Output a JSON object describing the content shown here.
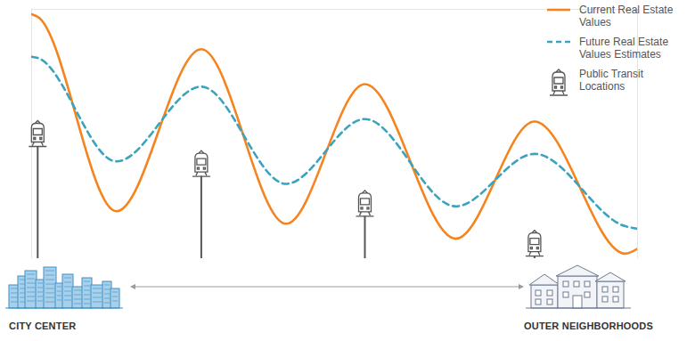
{
  "chart_data": {
    "type": "line",
    "x": [
      0,
      1,
      14,
      28,
      42,
      55,
      70,
      83,
      98,
      100
    ],
    "series": [
      {
        "name": "Current Real Estate Values",
        "color": "#f5841f",
        "line_style": "solid",
        "values": [
          98,
          97,
          19,
          84,
          14,
          70,
          8,
          55,
          2,
          4
        ]
      },
      {
        "name": "Future Real Estate Values Estimates",
        "color": "#3ba3bd",
        "line_style": "dashed",
        "values": [
          81,
          80.5,
          39,
          69,
          30,
          56,
          21,
          42,
          13,
          12
        ]
      },
      {
        "name": "Public Transit Locations",
        "type": "stem",
        "marker": "train",
        "color": "#555555",
        "values": [
          null,
          45,
          null,
          33,
          null,
          17,
          null,
          1,
          null,
          null
        ]
      }
    ],
    "xlim": [
      0,
      100
    ],
    "ylim": [
      0,
      100
    ],
    "xticks": [],
    "yticks": [],
    "tick_labels": false,
    "grid": false,
    "legend": "right",
    "annotations": [
      "CITY CENTER",
      "OUTER NEIGHBORHOODS"
    ]
  }
}
